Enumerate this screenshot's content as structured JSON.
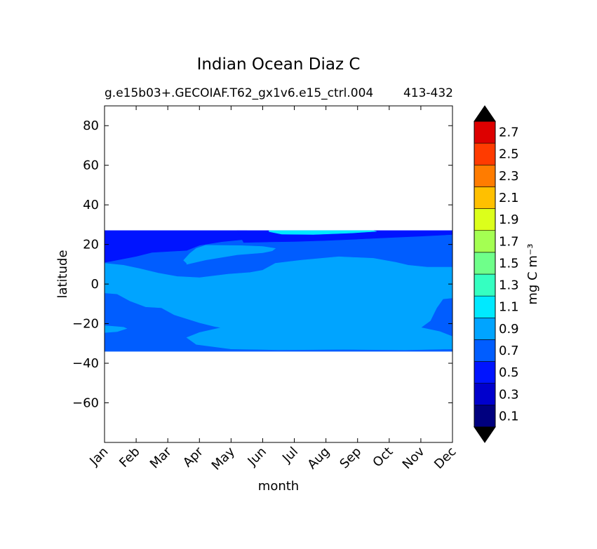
{
  "chart_data": {
    "type": "heatmap",
    "title": "Indian Ocean Diaz C",
    "subtitle_left": "g.e15b03+.GECOIAF.T62_gx1v6.e15_ctrl.004",
    "subtitle_right": "413-432",
    "xlabel": "month",
    "ylabel": "latitude",
    "x_categories": [
      "Jan",
      "Feb",
      "Mar",
      "Apr",
      "May",
      "Jun",
      "Jul",
      "Aug",
      "Sep",
      "Oct",
      "Nov",
      "Dec"
    ],
    "ylim": [
      -80,
      90
    ],
    "y_ticks": [
      80,
      60,
      40,
      20,
      0,
      -20,
      -40,
      -60
    ],
    "y_tick_labels": [
      "80",
      "60",
      "40",
      "20",
      "0",
      "−20",
      "−40",
      "−60"
    ],
    "data_lat_range": [
      -34,
      27
    ],
    "colorbar": {
      "label": "mg C m⁻³",
      "extend": "both",
      "levels": [
        0.0,
        0.2,
        0.4,
        0.6,
        0.8,
        1.0,
        1.2,
        1.4,
        1.6,
        1.8,
        2.0,
        2.2,
        2.4,
        2.6,
        2.8
      ],
      "tick_values": [
        0.1,
        0.3,
        0.5,
        0.7,
        0.9,
        1.1,
        1.3,
        1.5,
        1.7,
        1.9,
        2.1,
        2.3,
        2.5,
        2.7
      ],
      "tick_labels": [
        "0.1",
        "0.3",
        "0.5",
        "0.7",
        "0.9",
        "1.1",
        "1.3",
        "1.5",
        "1.7",
        "1.9",
        "2.1",
        "2.3",
        "2.5",
        "2.7"
      ],
      "colors": [
        "#00007f",
        "#0000cd",
        "#0014ff",
        "#005dff",
        "#00a4ff",
        "#00e9ff",
        "#35ffc1",
        "#6fff8a",
        "#a4ff52",
        "#dcff1b",
        "#ffc000",
        "#ff7c00",
        "#ff3b00",
        "#dd0000",
        "#7f0000"
      ],
      "under_color": "#000000",
      "over_color": "#000000"
    },
    "regions": [
      {
        "level": 0.5,
        "color": "#005dff",
        "description": "background mid-range",
        "lat_range": [
          -34,
          27
        ]
      },
      {
        "level": 0.3,
        "color": "#0014ff",
        "description": "northern band",
        "lat_range": [
          10,
          27
        ]
      },
      {
        "level": 0.3,
        "color": "#0014ff",
        "description": "central-southern band",
        "lat_range": [
          -33,
          18
        ]
      },
      {
        "level": 0.7,
        "color": "#00a4ff",
        "description": "Arabian Sea spring maximum",
        "lat_range": [
          5,
          19
        ]
      },
      {
        "level": 0.7,
        "color": "#00a4ff",
        "description": "northern summer maximum",
        "lat_range": [
          21,
          26
        ]
      },
      {
        "level": 0.9,
        "color": "#00e9ff",
        "description": "northern summer peak",
        "lat_range": [
          25,
          26.5
        ]
      },
      {
        "level": 0.7,
        "color": "#00a4ff",
        "description": "southern winter patch",
        "lat_range": [
          -25,
          -21
        ]
      }
    ]
  }
}
